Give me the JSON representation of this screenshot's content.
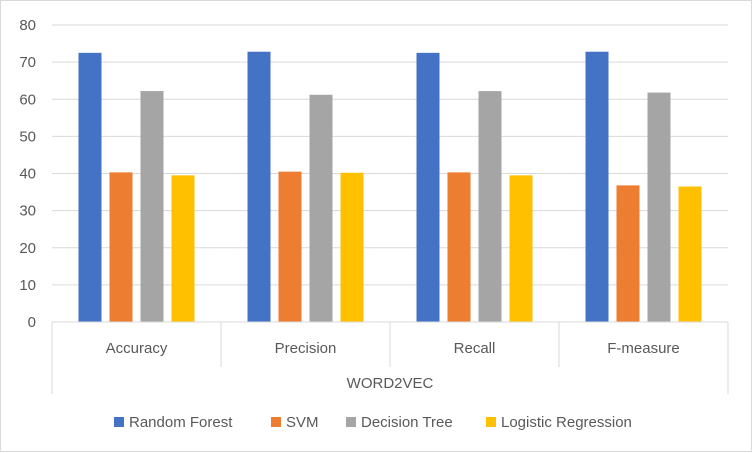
{
  "chart_data": {
    "type": "bar",
    "title": "",
    "xlabel": "",
    "ylabel": "",
    "group_label": "WORD2VEC",
    "categories": [
      "Accuracy",
      "Precision",
      "Recall",
      "F-measure"
    ],
    "ylim": [
      0,
      80
    ],
    "yticks": [
      0,
      10,
      20,
      30,
      40,
      50,
      60,
      70,
      80
    ],
    "grid": true,
    "legend_position": "bottom",
    "series": [
      {
        "name": "Random Forest",
        "color": "#4472c4",
        "values": [
          72.5,
          72.8,
          72.5,
          72.8
        ]
      },
      {
        "name": "SVM",
        "color": "#ed7d31",
        "values": [
          40.3,
          40.5,
          40.3,
          36.8
        ]
      },
      {
        "name": "Decision Tree",
        "color": "#a5a5a5",
        "values": [
          62.2,
          61.2,
          62.2,
          61.8
        ]
      },
      {
        "name": "Logistic Regression",
        "color": "#ffc000",
        "values": [
          39.5,
          40.2,
          39.5,
          36.5
        ]
      }
    ]
  }
}
